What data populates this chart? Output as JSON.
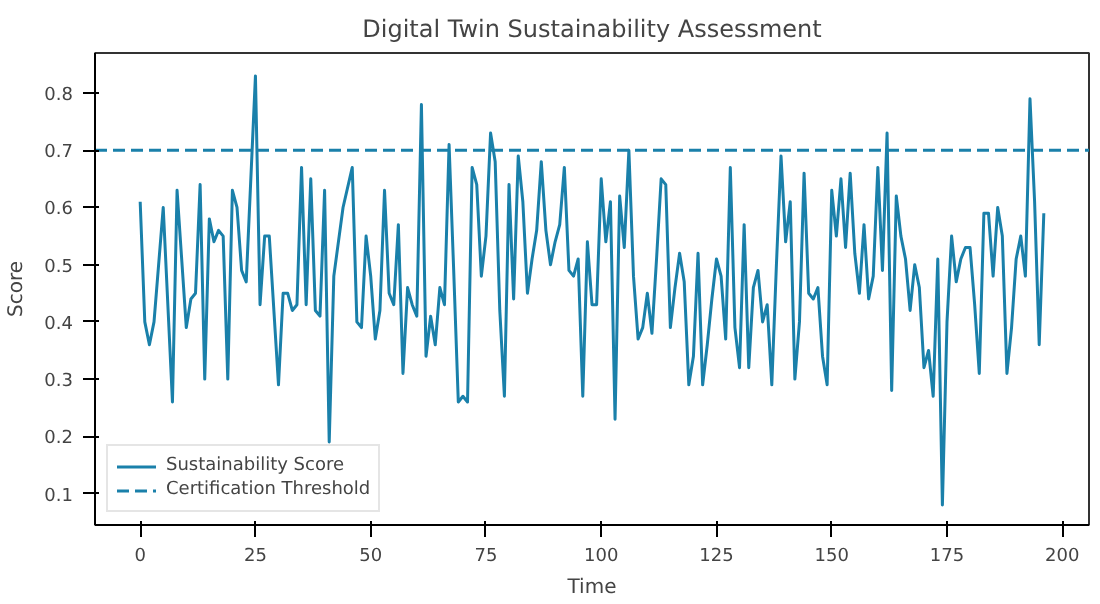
{
  "chart_data": {
    "type": "line",
    "title": "Digital Twin Sustainability Assessment",
    "xlabel": "Time",
    "ylabel": "Score",
    "xlim": [
      -9.8,
      205.8
    ],
    "ylim": [
      0.045,
      0.87
    ],
    "xticks": [
      0,
      25,
      50,
      75,
      100,
      125,
      150,
      175,
      200
    ],
    "yticks": [
      0.1,
      0.2,
      0.3,
      0.4,
      0.5,
      0.6,
      0.7,
      0.8
    ],
    "grid": false,
    "legend": "bottom left",
    "marker": "none",
    "line_style": "solid",
    "series": [
      {
        "name": "Sustainability Score",
        "color": "#1a80aa",
        "x": [
          0,
          1,
          2,
          3,
          5,
          7,
          8,
          10,
          11,
          12,
          13,
          14,
          15,
          16,
          17,
          18,
          19,
          20,
          21,
          22,
          23,
          25,
          26,
          27,
          28,
          30,
          31,
          32,
          33,
          34,
          35,
          36,
          37,
          38,
          39,
          40,
          41,
          42,
          44,
          46,
          47,
          48,
          49,
          50,
          51,
          52,
          53,
          54,
          55,
          56,
          57,
          58,
          59,
          60,
          61,
          62,
          63,
          64,
          65,
          66,
          67,
          68,
          69,
          70,
          71,
          72,
          73,
          74,
          75,
          76,
          77,
          78,
          79,
          80,
          81,
          82,
          83,
          84,
          85,
          86,
          87,
          88,
          89,
          90,
          91,
          92,
          93,
          94,
          95,
          96,
          97,
          98,
          99,
          100,
          101,
          102,
          103,
          104,
          105,
          106,
          107,
          108,
          109,
          110,
          111,
          112,
          113,
          114,
          115,
          116,
          117,
          118,
          119,
          120,
          121,
          122,
          123,
          124,
          125,
          126,
          127,
          128,
          129,
          130,
          131,
          132,
          133,
          134,
          135,
          136,
          137,
          138,
          139,
          140,
          141,
          142,
          143,
          144,
          145,
          146,
          147,
          148,
          149,
          150,
          151,
          152,
          153,
          154,
          155,
          156,
          157,
          158,
          159,
          160,
          161,
          162,
          163,
          164,
          165,
          166,
          167,
          168,
          169,
          170,
          171,
          172,
          173,
          174,
          175,
          176,
          177,
          178,
          179,
          180,
          181,
          182,
          183,
          184,
          185,
          186,
          187,
          188,
          189,
          190,
          191,
          192,
          193,
          194,
          195,
          196
        ],
        "values": [
          0.61,
          0.4,
          0.36,
          0.4,
          0.6,
          0.26,
          0.63,
          0.39,
          0.44,
          0.45,
          0.64,
          0.3,
          0.58,
          0.54,
          0.56,
          0.55,
          0.3,
          0.63,
          0.6,
          0.49,
          0.47,
          0.83,
          0.43,
          0.55,
          0.55,
          0.29,
          0.45,
          0.45,
          0.42,
          0.43,
          0.67,
          0.43,
          0.65,
          0.42,
          0.41,
          0.63,
          0.19,
          0.48,
          0.6,
          0.67,
          0.4,
          0.39,
          0.55,
          0.48,
          0.37,
          0.42,
          0.63,
          0.45,
          0.43,
          0.57,
          0.31,
          0.46,
          0.43,
          0.41,
          0.78,
          0.34,
          0.41,
          0.36,
          0.46,
          0.43,
          0.71,
          0.49,
          0.26,
          0.27,
          0.26,
          0.67,
          0.64,
          0.48,
          0.55,
          0.73,
          0.68,
          0.42,
          0.27,
          0.64,
          0.44,
          0.69,
          0.61,
          0.45,
          0.51,
          0.56,
          0.68,
          0.56,
          0.5,
          0.54,
          0.57,
          0.67,
          0.49,
          0.48,
          0.51,
          0.27,
          0.54,
          0.43,
          0.43,
          0.65,
          0.54,
          0.61,
          0.23,
          0.62,
          0.53,
          0.7,
          0.48,
          0.37,
          0.39,
          0.45,
          0.38,
          0.51,
          0.65,
          0.64,
          0.39,
          0.46,
          0.52,
          0.47,
          0.29,
          0.34,
          0.52,
          0.29,
          0.36,
          0.44,
          0.51,
          0.48,
          0.37,
          0.67,
          0.39,
          0.32,
          0.57,
          0.32,
          0.46,
          0.49,
          0.4,
          0.43,
          0.29,
          0.5,
          0.69,
          0.54,
          0.61,
          0.3,
          0.4,
          0.66,
          0.45,
          0.44,
          0.46,
          0.34,
          0.29,
          0.63,
          0.55,
          0.65,
          0.53,
          0.66,
          0.52,
          0.45,
          0.57,
          0.44,
          0.48,
          0.67,
          0.49,
          0.73,
          0.28,
          0.62,
          0.55,
          0.51,
          0.42,
          0.5,
          0.46,
          0.32,
          0.35,
          0.27,
          0.51,
          0.08,
          0.4,
          0.55,
          0.47,
          0.51,
          0.53,
          0.53,
          0.43,
          0.31,
          0.59,
          0.59,
          0.48,
          0.6,
          0.55,
          0.31,
          0.39,
          0.51,
          0.55,
          0.48,
          0.79,
          0.61,
          0.36,
          0.59
        ]
      }
    ],
    "ref_lines": [
      {
        "axis": "y",
        "value": 0.7,
        "label": "Certification Threshold",
        "color": "#1a80aa",
        "line_style": "dashed"
      }
    ]
  }
}
